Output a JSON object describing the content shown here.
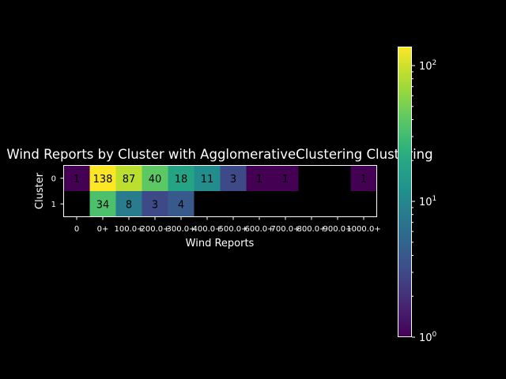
{
  "chart_data": {
    "type": "heatmap",
    "title": "Wind Reports by Cluster with AgglomerativeClustering Clustering",
    "xlabel": "Wind Reports",
    "ylabel": "Cluster",
    "x_categories": [
      "0",
      "0+",
      "100.0+",
      "200.0+",
      "300.0+",
      "400.0+",
      "500.0+",
      "600.0+",
      "700.0+",
      "800.0+",
      "900.0+",
      "1000.0+"
    ],
    "y_categories": [
      "0",
      "1"
    ],
    "values": [
      [
        1,
        138,
        87,
        40,
        18,
        11,
        3,
        1,
        1,
        null,
        null,
        1
      ],
      [
        null,
        34,
        8,
        3,
        4,
        null,
        null,
        null,
        null,
        null,
        null,
        null
      ]
    ],
    "colormap": "viridis",
    "color_scale": "log",
    "colorbar": {
      "min": 1,
      "max": 138,
      "ticks": [
        "10^0",
        "10^1",
        "10^2"
      ]
    },
    "background": "#000000",
    "grid": false
  }
}
